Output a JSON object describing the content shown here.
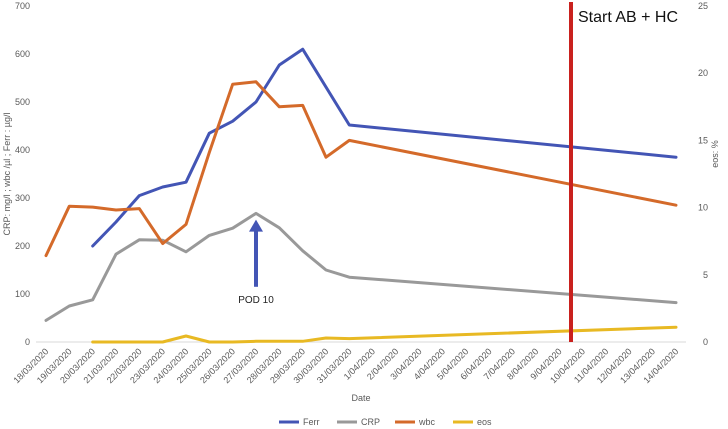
{
  "chart_data": {
    "type": "line",
    "title": "",
    "xlabel": "Date",
    "ylabel": "CRP: mg/l ; wbc /µl ; Ferr : µg/l",
    "y2label": "eos: %",
    "ylim": [
      0,
      700
    ],
    "y2lim": [
      0,
      25
    ],
    "yticks": [
      0,
      100,
      200,
      300,
      400,
      500,
      600,
      700
    ],
    "y2ticks": [
      0,
      5,
      10,
      15,
      20,
      25
    ],
    "grid": false,
    "legend_position": "bottom",
    "categories": [
      "18/03/2020",
      "19/03/2020",
      "20/03/2020",
      "21/03/2020",
      "22/03/2020",
      "23/03/2020",
      "24/03/2020",
      "25/03/2020",
      "26/03/2020",
      "27/03/2020",
      "28/03/2020",
      "29/03/2020",
      "30/03/2020",
      "31/03/2020",
      "1/04/2020",
      "2/04/2020",
      "3/04/2020",
      "4/04/2020",
      "5/04/2020",
      "6/04/2020",
      "7/04/2020",
      "8/04/2020",
      "9/04/2020",
      "10/04/2020",
      "11/04/2020",
      "12/04/2020",
      "13/04/2020",
      "14/04/2020"
    ],
    "series": [
      {
        "name": "Ferr",
        "axis": "left",
        "color": "#4355B5",
        "points": [
          [
            "20/03/2020",
            200
          ],
          [
            "21/03/2020",
            250
          ],
          [
            "22/03/2020",
            305
          ],
          [
            "23/03/2020",
            323
          ],
          [
            "24/03/2020",
            333
          ],
          [
            "25/03/2020",
            435
          ],
          [
            "26/03/2020",
            460
          ],
          [
            "27/03/2020",
            500
          ],
          [
            "28/03/2020",
            577
          ],
          [
            "29/03/2020",
            610
          ],
          [
            "31/03/2020",
            452
          ],
          [
            "14/04/2020",
            385
          ]
        ]
      },
      {
        "name": "CRP",
        "axis": "left",
        "color": "#999999",
        "points": [
          [
            "18/03/2020",
            45
          ],
          [
            "19/03/2020",
            75
          ],
          [
            "20/03/2020",
            88
          ],
          [
            "21/03/2020",
            183
          ],
          [
            "22/03/2020",
            213
          ],
          [
            "23/03/2020",
            212
          ],
          [
            "24/03/2020",
            188
          ],
          [
            "25/03/2020",
            222
          ],
          [
            "26/03/2020",
            237
          ],
          [
            "27/03/2020",
            268
          ],
          [
            "28/03/2020",
            238
          ],
          [
            "29/03/2020",
            190
          ],
          [
            "30/03/2020",
            150
          ],
          [
            "31/03/2020",
            135
          ],
          [
            "14/04/2020",
            82
          ]
        ]
      },
      {
        "name": "wbc",
        "axis": "left",
        "color": "#D46A2A",
        "points": [
          [
            "18/03/2020",
            180
          ],
          [
            "19/03/2020",
            283
          ],
          [
            "20/03/2020",
            281
          ],
          [
            "21/03/2020",
            275
          ],
          [
            "22/03/2020",
            278
          ],
          [
            "23/03/2020",
            205
          ],
          [
            "24/03/2020",
            245
          ],
          [
            "25/03/2020",
            395
          ],
          [
            "26/03/2020",
            537
          ],
          [
            "27/03/2020",
            542
          ],
          [
            "28/03/2020",
            490
          ],
          [
            "29/03/2020",
            493
          ],
          [
            "30/03/2020",
            385
          ],
          [
            "31/03/2020",
            420
          ],
          [
            "14/04/2020",
            285
          ]
        ]
      },
      {
        "name": "eos",
        "axis": "right",
        "color": "#E8B923",
        "points": [
          [
            "20/03/2020",
            0
          ],
          [
            "23/03/2020",
            0
          ],
          [
            "24/03/2020",
            0.45
          ],
          [
            "25/03/2020",
            0
          ],
          [
            "26/03/2020",
            0
          ],
          [
            "27/03/2020",
            0.05
          ],
          [
            "28/03/2020",
            0.05
          ],
          [
            "29/03/2020",
            0.05
          ],
          [
            "30/03/2020",
            0.3
          ],
          [
            "31/03/2020",
            0.25
          ],
          [
            "14/04/2020",
            1.1
          ]
        ]
      }
    ],
    "annotations": [
      {
        "type": "vline",
        "at": "22.5",
        "color": "#C9211E",
        "text": "Start AB + HC"
      },
      {
        "type": "arrow",
        "at": "27/03/2020",
        "y": 255,
        "from_y": 115,
        "color": "#4355B5",
        "text": "POD 10"
      }
    ]
  }
}
